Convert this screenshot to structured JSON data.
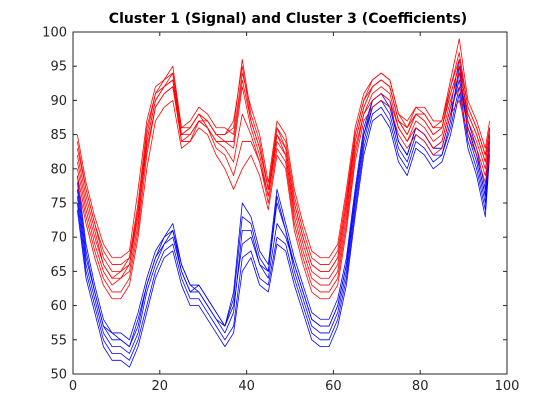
{
  "chart_data": {
    "type": "line",
    "title": "Cluster 1 (Signal) and Cluster 3 (Coefficients)",
    "xlabel": "",
    "ylabel": "",
    "xlim": [
      0,
      100
    ],
    "ylim": [
      50,
      100
    ],
    "xticks": [
      0,
      20,
      40,
      60,
      80,
      100
    ],
    "yticks": [
      50,
      55,
      60,
      65,
      70,
      75,
      80,
      85,
      90,
      95,
      100
    ],
    "grid": false,
    "legend": "none",
    "colors": {
      "red_series": "#ff0000",
      "blue_series": "#0000ff"
    },
    "x": [
      1,
      3,
      5,
      7,
      9,
      11,
      13,
      15,
      17,
      19,
      21,
      23,
      25,
      27,
      29,
      31,
      33,
      35,
      37,
      39,
      41,
      43,
      45,
      47,
      49,
      51,
      53,
      55,
      57,
      59,
      61,
      63,
      65,
      67,
      69,
      71,
      73,
      75,
      77,
      79,
      81,
      83,
      85,
      87,
      89,
      91,
      93,
      95,
      96
    ],
    "series": [
      {
        "group": "red",
        "values": [
          83,
          77,
          72,
          68,
          66,
          66,
          67,
          75,
          86,
          91,
          93,
          94,
          86,
          86,
          88,
          87,
          85,
          85,
          86,
          96,
          88,
          84,
          77,
          86,
          84,
          76,
          71,
          67,
          66,
          66,
          68,
          76,
          85,
          90,
          93,
          94,
          93,
          88,
          86,
          89,
          88,
          86,
          87,
          92,
          97,
          89,
          86,
          82,
          86
        ]
      },
      {
        "group": "red",
        "values": [
          81,
          75,
          70,
          66,
          64,
          64,
          65,
          72,
          84,
          90,
          92,
          93,
          84,
          84,
          87,
          86,
          84,
          84,
          83,
          92,
          86,
          82,
          76,
          85,
          82,
          74,
          69,
          65,
          64,
          64,
          66,
          74,
          84,
          89,
          92,
          93,
          92,
          87,
          85,
          88,
          87,
          85,
          86,
          91,
          95,
          88,
          85,
          81,
          85
        ]
      },
      {
        "group": "red",
        "values": [
          85,
          78,
          73,
          69,
          67,
          67,
          68,
          77,
          87,
          92,
          93,
          95,
          86,
          87,
          89,
          88,
          86,
          86,
          85,
          94,
          89,
          85,
          78,
          87,
          85,
          77,
          72,
          68,
          67,
          67,
          69,
          77,
          86,
          91,
          93,
          94,
          93,
          88,
          87,
          89,
          89,
          87,
          87,
          93,
          99,
          90,
          87,
          83,
          87
        ]
      },
      {
        "group": "red",
        "values": [
          80,
          74,
          69,
          65,
          63,
          64,
          66,
          73,
          83,
          89,
          91,
          92,
          85,
          86,
          88,
          86,
          84,
          83,
          81,
          88,
          85,
          81,
          76,
          84,
          82,
          73,
          68,
          64,
          63,
          63,
          65,
          73,
          83,
          88,
          91,
          92,
          91,
          86,
          84,
          87,
          86,
          84,
          85,
          90,
          94,
          87,
          84,
          80,
          84
        ]
      },
      {
        "group": "red",
        "values": [
          84,
          77,
          72,
          67,
          65,
          65,
          67,
          74,
          85,
          91,
          92,
          94,
          85,
          85,
          87,
          87,
          85,
          84,
          84,
          93,
          87,
          83,
          77,
          86,
          83,
          75,
          70,
          66,
          65,
          65,
          67,
          75,
          85,
          90,
          92,
          93,
          92,
          87,
          86,
          88,
          88,
          86,
          86,
          92,
          96,
          89,
          86,
          82,
          86
        ]
      },
      {
        "group": "red",
        "values": [
          79,
          73,
          68,
          64,
          62,
          62,
          64,
          71,
          82,
          89,
          91,
          92,
          84,
          85,
          87,
          86,
          83,
          82,
          79,
          84,
          84,
          81,
          75,
          83,
          81,
          72,
          67,
          63,
          62,
          62,
          64,
          72,
          82,
          88,
          90,
          91,
          90,
          86,
          84,
          86,
          85,
          83,
          84,
          89,
          92,
          86,
          83,
          79,
          83
        ]
      },
      {
        "group": "red",
        "values": [
          82,
          76,
          71,
          66,
          64,
          65,
          66,
          74,
          84,
          90,
          92,
          93,
          85,
          86,
          88,
          87,
          85,
          85,
          87,
          95,
          87,
          83,
          77,
          85,
          83,
          75,
          70,
          66,
          65,
          65,
          67,
          75,
          84,
          89,
          92,
          93,
          92,
          87,
          85,
          88,
          87,
          85,
          86,
          91,
          95,
          88,
          85,
          81,
          85
        ]
      },
      {
        "group": "red",
        "values": [
          78,
          72,
          67,
          63,
          61,
          61,
          63,
          70,
          80,
          87,
          89,
          90,
          83,
          84,
          86,
          85,
          82,
          80,
          77,
          80,
          82,
          79,
          74,
          82,
          80,
          71,
          66,
          62,
          61,
          61,
          63,
          71,
          81,
          87,
          89,
          90,
          89,
          85,
          83,
          85,
          84,
          82,
          83,
          88,
          90,
          85,
          82,
          78,
          82
        ]
      },
      {
        "group": "blue",
        "values": [
          78,
          68,
          62,
          57,
          55,
          55,
          54,
          57,
          63,
          67,
          70,
          72,
          66,
          63,
          63,
          61,
          59,
          57,
          60,
          69,
          70,
          66,
          64,
          72,
          70,
          66,
          62,
          58,
          57,
          57,
          60,
          66,
          76,
          85,
          90,
          91,
          89,
          84,
          82,
          86,
          85,
          83,
          83,
          88,
          93,
          86,
          82,
          76,
          85
        ]
      },
      {
        "group": "blue",
        "values": [
          76,
          66,
          61,
          56,
          54,
          54,
          53,
          56,
          62,
          66,
          69,
          70,
          65,
          62,
          62,
          60,
          58,
          56,
          59,
          71,
          71,
          66,
          65,
          75,
          71,
          65,
          61,
          57,
          56,
          56,
          59,
          65,
          75,
          84,
          89,
          90,
          88,
          83,
          81,
          85,
          84,
          82,
          82,
          87,
          95,
          85,
          81,
          75,
          84
        ]
      },
      {
        "group": "blue",
        "values": [
          77,
          67,
          62,
          57,
          56,
          56,
          55,
          59,
          64,
          68,
          70,
          71,
          66,
          63,
          62,
          60,
          58,
          57,
          62,
          75,
          73,
          68,
          66,
          77,
          72,
          67,
          63,
          59,
          58,
          58,
          61,
          67,
          77,
          86,
          90,
          91,
          90,
          84,
          82,
          86,
          85,
          83,
          84,
          89,
          96,
          87,
          83,
          77,
          86
        ]
      },
      {
        "group": "blue",
        "values": [
          75,
          65,
          60,
          55,
          53,
          53,
          52,
          55,
          60,
          65,
          68,
          69,
          64,
          61,
          61,
          59,
          57,
          55,
          57,
          67,
          68,
          64,
          63,
          70,
          69,
          64,
          60,
          56,
          55,
          55,
          58,
          64,
          74,
          83,
          88,
          89,
          87,
          82,
          80,
          84,
          83,
          81,
          82,
          86,
          92,
          84,
          80,
          74,
          83
        ]
      },
      {
        "group": "blue",
        "values": [
          79,
          69,
          63,
          58,
          56,
          55,
          54,
          58,
          63,
          67,
          69,
          71,
          65,
          62,
          63,
          61,
          59,
          57,
          61,
          73,
          72,
          67,
          65,
          76,
          71,
          66,
          62,
          58,
          57,
          57,
          60,
          66,
          76,
          85,
          89,
          90,
          89,
          84,
          82,
          86,
          85,
          83,
          83,
          88,
          94,
          86,
          82,
          76,
          85
        ]
      },
      {
        "group": "blue",
        "values": [
          74,
          64,
          59,
          54,
          52,
          52,
          51,
          54,
          59,
          64,
          67,
          68,
          63,
          60,
          60,
          58,
          56,
          54,
          56,
          65,
          67,
          63,
          62,
          69,
          68,
          63,
          59,
          55,
          54,
          54,
          57,
          63,
          73,
          82,
          87,
          88,
          86,
          81,
          79,
          83,
          82,
          80,
          81,
          85,
          91,
          83,
          79,
          73,
          82
        ]
      }
    ]
  }
}
